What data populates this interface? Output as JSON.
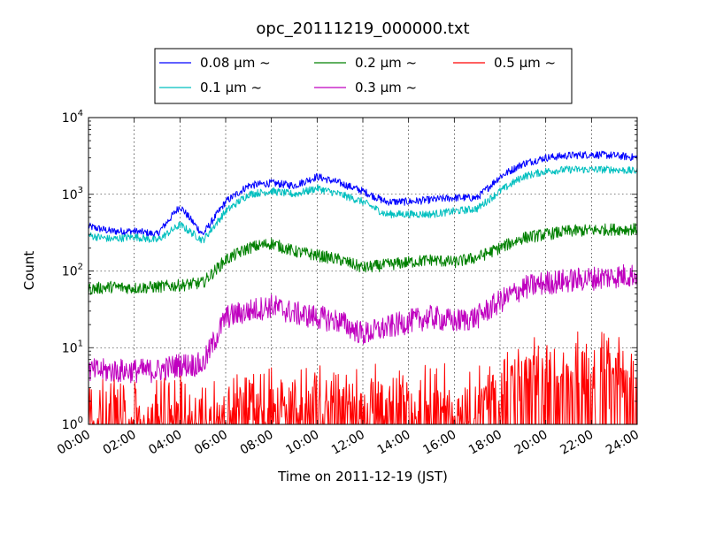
{
  "chart_data": {
    "type": "line",
    "title": "opc_20111219_000000.txt",
    "xlabel": "Time on 2011-12-19 (JST)",
    "ylabel": "Count",
    "yscale": "log",
    "ylim": [
      1,
      10000
    ],
    "xlim": [
      "00:00",
      "24:00"
    ],
    "grid": true,
    "legend_position": "top-center",
    "x_ticks": [
      "00:00",
      "02:00",
      "04:00",
      "06:00",
      "08:00",
      "10:00",
      "12:00",
      "14:00",
      "16:00",
      "18:00",
      "20:00",
      "22:00",
      "24:00"
    ],
    "y_ticks": [
      {
        "base": "10",
        "exp": "0"
      },
      {
        "base": "10",
        "exp": "1"
      },
      {
        "base": "10",
        "exp": "2"
      },
      {
        "base": "10",
        "exp": "3"
      },
      {
        "base": "10",
        "exp": "4"
      }
    ],
    "x": [
      "00:00",
      "01:00",
      "02:00",
      "03:00",
      "04:00",
      "05:00",
      "06:00",
      "07:00",
      "08:00",
      "09:00",
      "10:00",
      "11:00",
      "12:00",
      "13:00",
      "14:00",
      "15:00",
      "16:00",
      "17:00",
      "18:00",
      "19:00",
      "20:00",
      "21:00",
      "22:00",
      "23:00",
      "24:00"
    ],
    "series": [
      {
        "name": "0.08 μm ~",
        "color": "#0000ff",
        "values": [
          380,
          330,
          330,
          300,
          700,
          300,
          800,
          1300,
          1400,
          1300,
          1700,
          1400,
          1100,
          800,
          800,
          850,
          900,
          900,
          1700,
          2500,
          3000,
          3200,
          3300,
          3200,
          3000
        ]
      },
      {
        "name": "0.1 μm ~",
        "color": "#00bfbf",
        "values": [
          290,
          260,
          280,
          250,
          400,
          250,
          600,
          1000,
          1100,
          1000,
          1200,
          1000,
          800,
          550,
          550,
          550,
          600,
          650,
          1100,
          1700,
          2000,
          2100,
          2100,
          2100,
          2000
        ]
      },
      {
        "name": "0.2 μm ~",
        "color": "#008000",
        "values": [
          58,
          62,
          60,
          62,
          65,
          70,
          140,
          200,
          230,
          180,
          160,
          140,
          110,
          120,
          130,
          140,
          130,
          150,
          200,
          270,
          300,
          330,
          340,
          350,
          350
        ]
      },
      {
        "name": "0.3 μm ~",
        "color": "#bf00bf",
        "values": [
          5,
          5,
          5,
          5,
          6,
          6,
          25,
          30,
          35,
          28,
          25,
          22,
          15,
          18,
          22,
          25,
          22,
          25,
          40,
          60,
          70,
          75,
          80,
          85,
          90
        ]
      },
      {
        "name": "0.5 μm ~",
        "color": "#ff0000",
        "values": [
          1.5,
          1.5,
          1.5,
          1.5,
          1.5,
          1.5,
          1.6,
          2,
          2,
          2,
          2.2,
          2.2,
          2,
          2,
          2,
          2,
          2,
          2,
          3,
          4.5,
          5,
          5,
          5.5,
          5.5,
          6
        ]
      }
    ]
  }
}
